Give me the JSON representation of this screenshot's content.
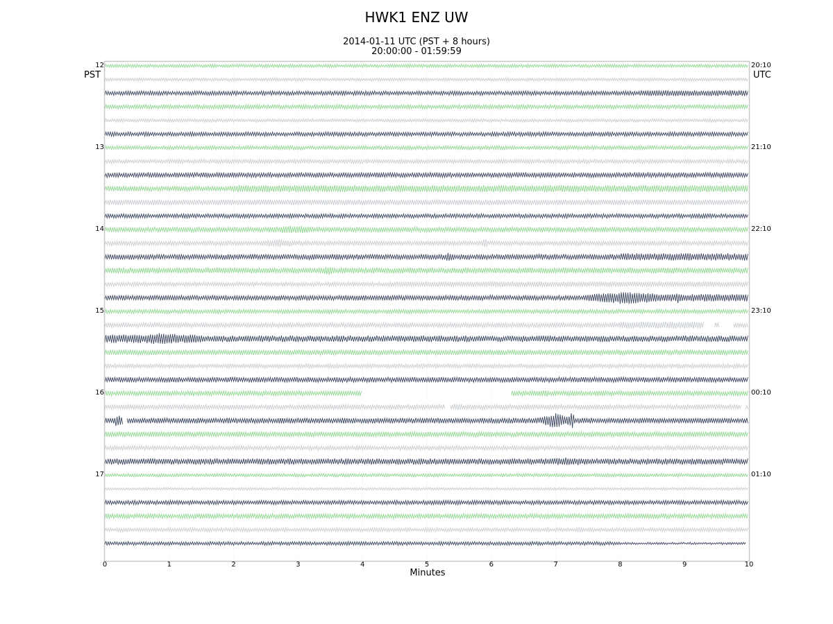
{
  "header": {
    "title": "HWK1 ENZ UW",
    "subtitle_line1": "2014-01-11 UTC (PST + 8 hours)",
    "subtitle_line2": "20:00:00 - 01:59:59"
  },
  "axes": {
    "left_tz": "PST",
    "right_tz": "UTC",
    "xlabel": "Minutes",
    "xticks": [
      "0",
      "1",
      "2",
      "3",
      "4",
      "5",
      "6",
      "7",
      "8",
      "9",
      "10"
    ],
    "left_hour_labels": [
      {
        "row": 0,
        "text": "12"
      },
      {
        "row": 6,
        "text": "13"
      },
      {
        "row": 12,
        "text": "14"
      },
      {
        "row": 18,
        "text": "15"
      },
      {
        "row": 24,
        "text": "16"
      },
      {
        "row": 30,
        "text": "17"
      }
    ],
    "right_hour_labels": [
      {
        "row": 0,
        "text": "20:10"
      },
      {
        "row": 6,
        "text": "21:10"
      },
      {
        "row": 12,
        "text": "22:10"
      },
      {
        "row": 18,
        "text": "23:10"
      },
      {
        "row": 24,
        "text": "00:10"
      },
      {
        "row": 30,
        "text": "01:10"
      }
    ]
  },
  "colors": {
    "trace_cycle": [
      "#90d890",
      "#c8ccd0",
      "#3c4660"
    ],
    "frame": "#c8c8c8",
    "grid": "#eeeeee"
  },
  "chart_data": {
    "type": "line",
    "title": "HWK1 ENZ UW",
    "subtitle": "2014-01-11 UTC (PST + 8 hours) 20:00:00 - 01:59:59",
    "xlabel": "Minutes",
    "ylabel": "",
    "xlim": [
      0,
      10
    ],
    "x_ticks": [
      0,
      1,
      2,
      3,
      4,
      5,
      6,
      7,
      8,
      9,
      10
    ],
    "grid": true,
    "legend": "none",
    "description": "Helicorder plot: 36 stacked 10-minute seismogram lines (6 hours), colors cycling green / light gray / dark slate. Amplitude is relative (0-1 scale, 1 = row spacing/2).",
    "rows": [
      {
        "row": 0,
        "amp": 0.22
      },
      {
        "row": 1,
        "amp": 0.22
      },
      {
        "row": 2,
        "amp": 0.28,
        "growth": [
          8.3,
          10,
          0.1
        ]
      },
      {
        "row": 3,
        "amp": 0.28
      },
      {
        "row": 4,
        "amp": 0.22
      },
      {
        "row": 5,
        "amp": 0.28
      },
      {
        "row": 6,
        "amp": 0.25
      },
      {
        "row": 7,
        "amp": 0.28
      },
      {
        "row": 8,
        "amp": 0.32
      },
      {
        "row": 9,
        "amp": 0.32,
        "growth": [
          2,
          10,
          0.15
        ]
      },
      {
        "row": 10,
        "amp": 0.36
      },
      {
        "row": 11,
        "amp": 0.28
      },
      {
        "row": 12,
        "amp": 0.34,
        "events": [
          [
            2.9,
            0.4,
            0.2
          ]
        ]
      },
      {
        "row": 13,
        "amp": 0.32,
        "events": [
          [
            2.7,
            0.3,
            0.25
          ],
          [
            5.9,
            0.05,
            0.5
          ]
        ]
      },
      {
        "row": 14,
        "amp": 0.36,
        "events": [
          [
            5.35,
            0.08,
            0.2
          ]
        ],
        "growth": [
          8,
          10,
          0.12
        ]
      },
      {
        "row": 15,
        "amp": 0.38,
        "events": [
          [
            3.45,
            0.15,
            0.2
          ]
        ]
      },
      {
        "row": 16,
        "amp": 0.28,
        "growth": [
          4.5,
          10,
          0.08
        ]
      },
      {
        "row": 17,
        "amp": 0.34,
        "events": [
          [
            8.1,
            0.6,
            0.35
          ],
          [
            8.9,
            0.05,
            0.3
          ]
        ],
        "growth": [
          7.5,
          10,
          0.15
        ]
      },
      {
        "row": 18,
        "amp": 0.28
      },
      {
        "row": 19,
        "amp": 0.32,
        "growth": [
          8,
          9.3,
          0.15
        ],
        "gaps": [
          [
            9.3,
            9.45
          ],
          [
            9.55,
            9.75
          ]
        ]
      },
      {
        "row": 20,
        "amp": 0.42,
        "events": [
          [
            0.9,
            0.3,
            0.2
          ]
        ],
        "growth": [
          0,
          1.5,
          0.15
        ]
      },
      {
        "row": 21,
        "amp": 0.34
      },
      {
        "row": 22,
        "amp": 0.28
      },
      {
        "row": 23,
        "amp": 0.34
      },
      {
        "row": 24,
        "amp": 0.32,
        "gaps": [
          [
            4,
            6.3
          ]
        ],
        "events": [
          [
            6.8,
            0.1,
            0.2
          ]
        ]
      },
      {
        "row": 25,
        "amp": 0.32,
        "gaps": [
          [
            5.28,
            5.36
          ],
          [
            9.88,
            9.94
          ]
        ],
        "events": [
          [
            5.45,
            0.1,
            0.25
          ]
        ]
      },
      {
        "row": 26,
        "amp": 0.36,
        "gaps": [
          [
            0.28,
            0.33
          ]
        ],
        "events": [
          [
            0.2,
            0.1,
            0.45
          ],
          [
            7.0,
            0.3,
            0.6
          ],
          [
            7.25,
            0.05,
            0.7
          ]
        ]
      },
      {
        "row": 27,
        "amp": 0.34
      },
      {
        "row": 28,
        "amp": 0.3
      },
      {
        "row": 29,
        "amp": 0.4,
        "events": [
          [
            7.2,
            0.4,
            0.15
          ]
        ]
      },
      {
        "row": 30,
        "amp": 0.22
      },
      {
        "row": 31,
        "amp": 0.18
      },
      {
        "row": 32,
        "amp": 0.28
      },
      {
        "row": 33,
        "amp": 0.32
      },
      {
        "row": 34,
        "amp": 0.26
      },
      {
        "row": 35,
        "amp": 0.24,
        "end": 9.95,
        "growth": [
          8,
          10,
          -0.1
        ]
      }
    ]
  }
}
